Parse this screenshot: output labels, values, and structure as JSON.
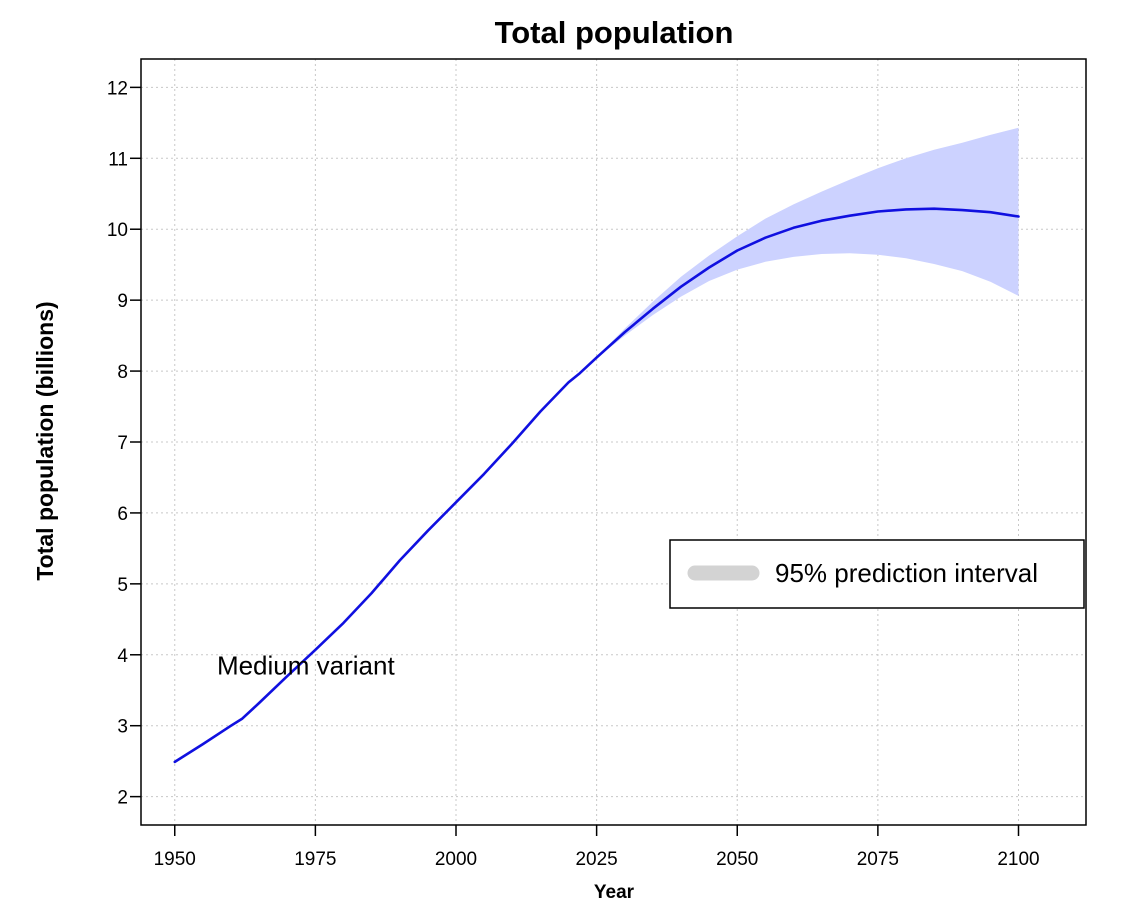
{
  "chart_data": {
    "type": "line",
    "title": "Total population",
    "xlabel": "Year",
    "ylabel": "Total population (billions)",
    "xlim": [
      1944,
      2112
    ],
    "ylim": [
      1.6,
      12.4
    ],
    "x_ticks": [
      1950,
      1975,
      2000,
      2025,
      2050,
      2075,
      2100
    ],
    "y_ticks": [
      2,
      3,
      4,
      5,
      6,
      7,
      8,
      9,
      10,
      11,
      12
    ],
    "grid": true,
    "series": [
      {
        "name": "Medium variant",
        "color": "#1010e0",
        "x": [
          1950,
          1955,
          1960,
          1962,
          1965,
          1970,
          1975,
          1980,
          1985,
          1990,
          1995,
          2000,
          2005,
          2010,
          2015,
          2020,
          2022,
          2025,
          2030,
          2035,
          2040,
          2045,
          2050,
          2055,
          2060,
          2065,
          2070,
          2075,
          2080,
          2085,
          2090,
          2095,
          2100
        ],
        "values": [
          2.49,
          2.74,
          3.0,
          3.1,
          3.32,
          3.7,
          4.07,
          4.45,
          4.87,
          5.33,
          5.75,
          6.15,
          6.55,
          6.98,
          7.43,
          7.84,
          7.97,
          8.19,
          8.55,
          8.88,
          9.19,
          9.46,
          9.7,
          9.88,
          10.02,
          10.12,
          10.19,
          10.25,
          10.28,
          10.29,
          10.27,
          10.24,
          10.18
        ]
      }
    ],
    "band": {
      "name": "95% prediction interval",
      "color": "#ccd2ff",
      "x": [
        2022,
        2025,
        2030,
        2035,
        2040,
        2045,
        2050,
        2055,
        2060,
        2065,
        2070,
        2075,
        2080,
        2085,
        2090,
        2095,
        2100
      ],
      "lower": [
        7.97,
        8.18,
        8.5,
        8.79,
        9.05,
        9.27,
        9.43,
        9.54,
        9.61,
        9.65,
        9.66,
        9.64,
        9.59,
        9.51,
        9.41,
        9.26,
        9.06
      ],
      "upper": [
        7.97,
        8.2,
        8.6,
        8.98,
        9.33,
        9.63,
        9.9,
        10.15,
        10.35,
        10.53,
        10.7,
        10.86,
        11.0,
        11.12,
        11.22,
        11.33,
        11.43
      ]
    },
    "legend": {
      "position": "right",
      "entries": [
        "95% prediction interval"
      ],
      "swatch_color": "#d3d3d3"
    },
    "annotations": [
      {
        "text": "Medium variant",
        "x": 1957.5,
        "y": 3.85
      }
    ]
  }
}
